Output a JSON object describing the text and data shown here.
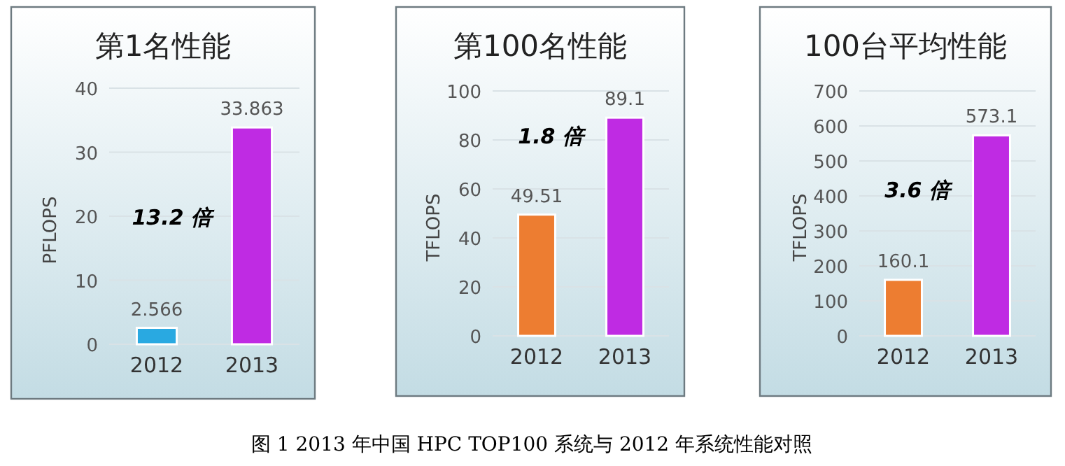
{
  "chart_data": [
    {
      "type": "bar",
      "title": "第1名性能",
      "ylabel": "PFLOPS",
      "categories": [
        "2012",
        "2013"
      ],
      "values": [
        2.566,
        33.863
      ],
      "colors": [
        "#29a9e1",
        "#bf2be3"
      ],
      "ylim": [
        0,
        40
      ],
      "yticks": [
        0,
        10,
        20,
        30,
        40
      ],
      "grid": "y",
      "data_labels": true,
      "annotations": [
        "13.2 倍",
        "图 1 2013 年中国 HPC TOP100 系统与 2012 年系统性能对照"
      ]
    },
    {
      "type": "bar",
      "title": "第100名性能",
      "ylabel": "TFLOPS",
      "categories": [
        "2012",
        "2013"
      ],
      "values": [
        49.51,
        89.1
      ],
      "colors": [
        "#ed7d31",
        "#bf2be3"
      ],
      "ylim": [
        0,
        100
      ],
      "yticks": [
        0,
        20,
        40,
        60,
        80,
        100
      ],
      "grid": "y",
      "data_labels": true,
      "annotations": [
        "1.8 倍"
      ]
    },
    {
      "type": "bar",
      "title": "100台平均性能",
      "ylabel": "TFLOPS",
      "categories": [
        "2012",
        "2013"
      ],
      "values": [
        160.1,
        573.1
      ],
      "colors": [
        "#ed7d31",
        "#bf2be3"
      ],
      "ylim": [
        0,
        700
      ],
      "yticks": [
        0,
        100,
        200,
        300,
        400,
        500,
        600,
        700
      ],
      "grid": "y",
      "data_labels": true,
      "annotations": [
        "3.6 倍"
      ]
    }
  ]
}
